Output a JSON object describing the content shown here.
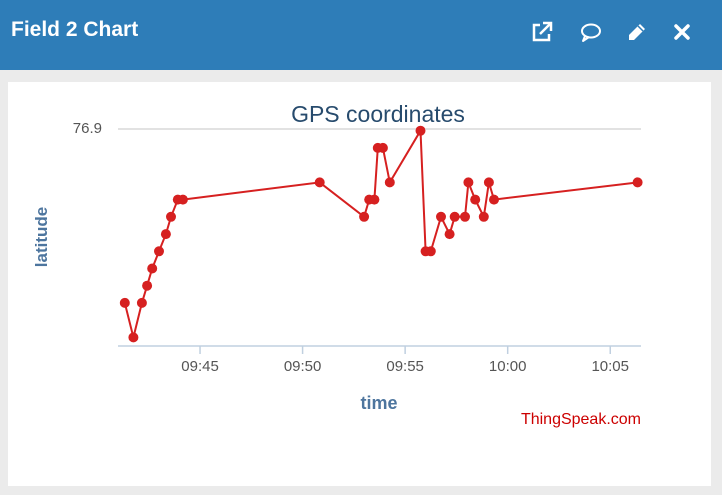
{
  "widget": {
    "title": "Field 2 Chart",
    "icons": [
      "external-link-icon",
      "comment-icon",
      "pencil-icon",
      "close-icon"
    ],
    "header_color": "#2e7db8"
  },
  "chart_data": {
    "type": "line",
    "title": "GPS coordinates",
    "xlabel": "time",
    "ylabel": "latitude",
    "credit": "ThingSpeak.com",
    "line_color": "#d62020",
    "title_color": "#274b6d",
    "axis_label_color": "#4d759e",
    "y_top_tick": "76.9",
    "x_ticks": [
      "09:45",
      "09:50",
      "09:55",
      "10:00",
      "10:05"
    ],
    "series": [
      {
        "x": [
          "09:41:20",
          "09:41:45",
          "09:42:10",
          "09:42:25",
          "09:42:40",
          "09:43:00",
          "09:43:20",
          "09:43:35",
          "09:43:55",
          "09:44:10",
          "09:50:50",
          "09:53:00",
          "09:53:15",
          "09:53:30",
          "09:53:40",
          "09:53:55",
          "09:54:15",
          "09:55:45",
          "09:56:00",
          "09:56:15",
          "09:56:45",
          "09:57:10",
          "09:57:25",
          "09:57:55",
          "09:58:05",
          "09:58:25",
          "09:58:50",
          "09:59:05",
          "09:59:20",
          "10:06:20"
        ],
        "y": [
          76.8,
          76.78,
          76.8,
          76.81,
          76.82,
          76.83,
          76.84,
          76.85,
          76.86,
          76.86,
          76.87,
          76.85,
          76.86,
          76.86,
          76.89,
          76.89,
          76.87,
          76.9,
          76.83,
          76.83,
          76.85,
          76.84,
          76.85,
          76.85,
          76.87,
          76.86,
          76.85,
          76.87,
          76.86,
          76.87
        ]
      }
    ]
  }
}
